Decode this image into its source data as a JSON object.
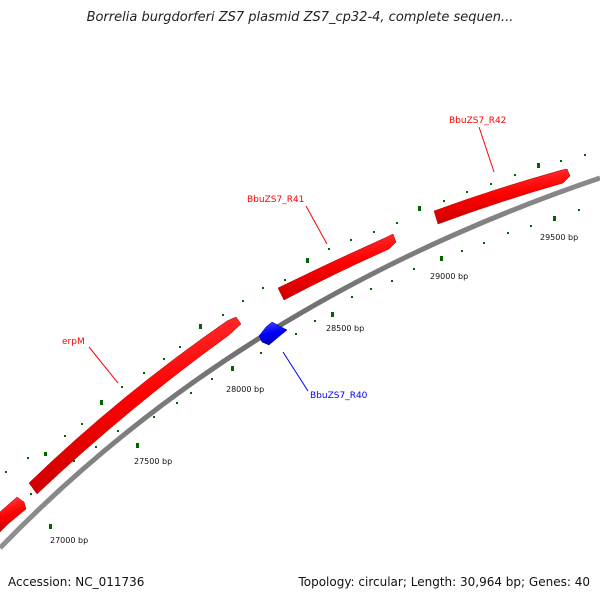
{
  "title": "Borrelia burgdorferi ZS7 plasmid ZS7_cp32-4, complete sequen...",
  "accession": {
    "label": "Accession:",
    "value": "NC_011736"
  },
  "summary": {
    "topology_label": "Topology:",
    "topology": "circular",
    "length_label": "Length:",
    "length": "30,964 bp",
    "genes_label": "Genes:",
    "genes": "40"
  },
  "colors": {
    "forward_gene": "#ff0000",
    "reverse_gene": "#0000ff",
    "backbone": "#808080",
    "tick": "#006400"
  },
  "scale_labels": [
    {
      "name": "tick-label-27000",
      "text": "27000 bp"
    },
    {
      "name": "tick-label-27500",
      "text": "27500 bp"
    },
    {
      "name": "tick-label-28000",
      "text": "28000 bp"
    },
    {
      "name": "tick-label-28500",
      "text": "28500 bp"
    },
    {
      "name": "tick-label-29000",
      "text": "29000 bp"
    },
    {
      "name": "tick-label-29500",
      "text": "29500 bp"
    }
  ],
  "gene_labels": [
    {
      "name": "gene-label-erpm",
      "text": "erpM",
      "strand": "forward"
    },
    {
      "name": "gene-label-bbuzs7-r40",
      "text": "BbuZS7_R40",
      "strand": "reverse"
    },
    {
      "name": "gene-label-bbuzs7-r41",
      "text": "BbuZS7_R41",
      "strand": "forward"
    },
    {
      "name": "gene-label-bbuzs7-r42",
      "text": "BbuZS7_R42",
      "strand": "forward"
    }
  ]
}
